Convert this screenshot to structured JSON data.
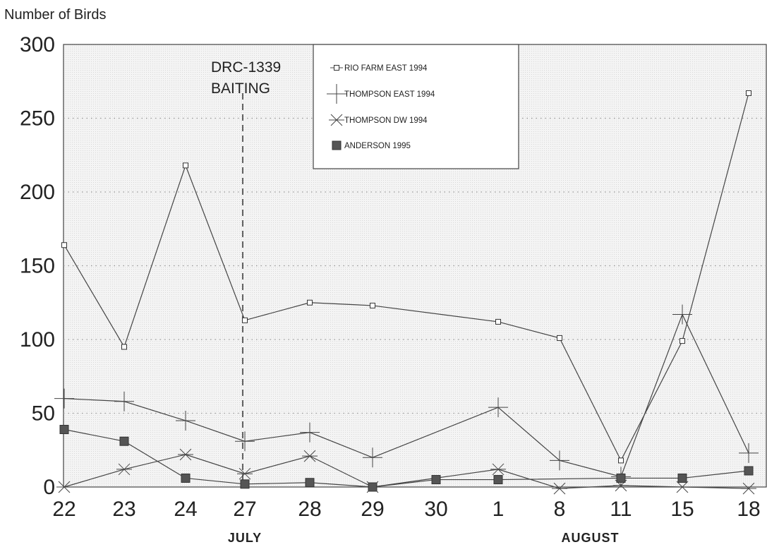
{
  "chart_data": {
    "type": "line",
    "ylabel": "Number of Birds",
    "xlabel": "",
    "ylim": [
      0,
      300
    ],
    "yticks": [
      0,
      50,
      100,
      150,
      200,
      250,
      300
    ],
    "categories": [
      "22",
      "23",
      "24",
      "27",
      "28",
      "29",
      "30",
      "1",
      "8",
      "11",
      "15",
      "18"
    ],
    "months": [
      {
        "label": "JULY",
        "category_index": 3
      },
      {
        "label": "AUGUST",
        "category_index": 8.5
      }
    ],
    "grid": true,
    "annotation": {
      "lines": [
        "DRC-1339",
        "BAITING"
      ],
      "category_index": 3,
      "style": "dashed vertical line"
    },
    "legend_position": "top-center",
    "series": [
      {
        "name": "RIO FARM EAST 1994",
        "marker": "open-square",
        "points": [
          [
            0,
            164
          ],
          [
            1,
            95
          ],
          [
            2,
            218
          ],
          [
            3,
            113
          ],
          [
            4,
            125
          ],
          [
            5,
            123
          ],
          [
            7,
            112
          ],
          [
            8,
            101
          ],
          [
            9,
            18
          ],
          [
            10,
            99
          ],
          [
            11,
            267
          ]
        ]
      },
      {
        "name": "THOMPSON EAST 1994",
        "marker": "plus",
        "points": [
          [
            0,
            60
          ],
          [
            1,
            58
          ],
          [
            2,
            45
          ],
          [
            3,
            31
          ],
          [
            4,
            37
          ],
          [
            5,
            20
          ],
          [
            7,
            54
          ],
          [
            8,
            18
          ],
          [
            9,
            7
          ],
          [
            10,
            117
          ],
          [
            11,
            23
          ]
        ]
      },
      {
        "name": "THOMPSON DW 1994",
        "marker": "asterisk",
        "points": [
          [
            0,
            0
          ],
          [
            1,
            12
          ],
          [
            2,
            22
          ],
          [
            3,
            9
          ],
          [
            4,
            21
          ],
          [
            5,
            0
          ],
          [
            7,
            12
          ],
          [
            8,
            -1
          ],
          [
            9,
            1
          ],
          [
            10,
            0
          ],
          [
            11,
            -1
          ]
        ]
      },
      {
        "name": "ANDERSON 1995",
        "marker": "filled-square",
        "points": [
          [
            0,
            39
          ],
          [
            1,
            31
          ],
          [
            2,
            6
          ],
          [
            3,
            2
          ],
          [
            4,
            3
          ],
          [
            5,
            0
          ],
          [
            6,
            5
          ],
          [
            7,
            5
          ],
          [
            9,
            6
          ],
          [
            10,
            6
          ],
          [
            11,
            11
          ]
        ]
      }
    ]
  }
}
